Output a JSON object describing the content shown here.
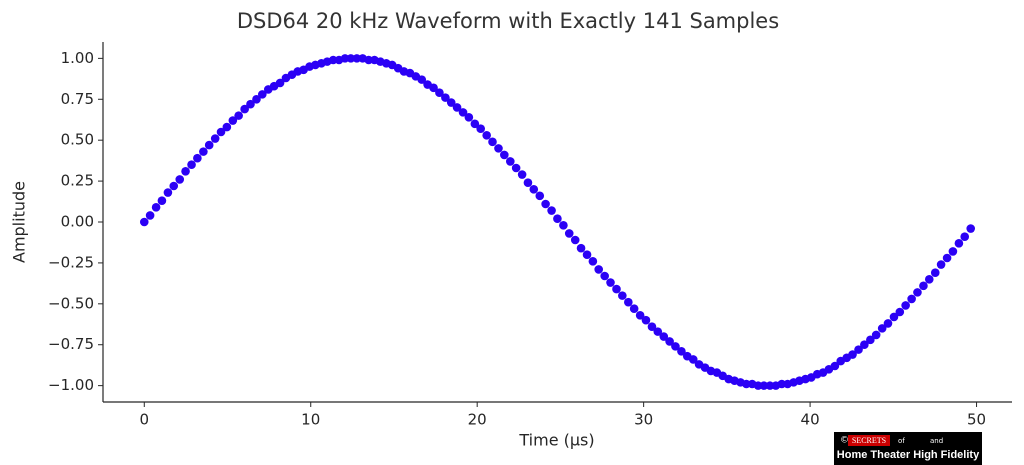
{
  "chart_data": {
    "type": "scatter",
    "title": "DSD64 20 kHz Waveform with Exactly 141 Samples",
    "x_label": "Time (µs)",
    "y_label": "Amplitude",
    "color": "#2b00f5",
    "x": [
      0,
      0.35,
      0.71,
      1.06,
      1.42,
      1.77,
      2.13,
      2.48,
      2.84,
      3.19,
      3.55,
      3.9,
      4.26,
      4.61,
      4.96,
      5.32,
      5.67,
      6.03,
      6.38,
      6.74,
      7.09,
      7.45,
      7.8,
      8.16,
      8.51,
      8.87,
      9.22,
      9.57,
      9.93,
      10.28,
      10.64,
      10.99,
      11.35,
      11.7,
      12.06,
      12.41,
      12.77,
      13.12,
      13.48,
      13.83,
      14.18,
      14.54,
      14.89,
      15.25,
      15.6,
      15.96,
      16.31,
      16.67,
      17.02,
      17.38,
      17.73,
      18.09,
      18.44,
      18.79,
      19.15,
      19.5,
      19.86,
      20.21,
      20.57,
      20.92,
      21.28,
      21.63,
      21.99,
      22.34,
      22.7,
      23.05,
      23.4,
      23.76,
      24.11,
      24.47,
      24.82,
      25.18,
      25.53,
      25.89,
      26.24,
      26.6,
      26.95,
      27.3,
      27.66,
      28.01,
      28.37,
      28.72,
      29.08,
      29.43,
      29.79,
      30.14,
      30.5,
      30.85,
      31.21,
      31.56,
      31.91,
      32.27,
      32.62,
      32.98,
      33.33,
      33.69,
      34.04,
      34.4,
      34.75,
      35.11,
      35.46,
      35.82,
      36.17,
      36.52,
      36.88,
      37.23,
      37.59,
      37.94,
      38.3,
      38.65,
      39.01,
      39.36,
      39.72,
      40.07,
      40.43,
      40.78,
      41.13,
      41.49,
      41.84,
      42.2,
      42.55,
      42.91,
      43.26,
      43.62,
      43.97,
      44.33,
      44.68,
      45.04,
      45.39,
      45.74,
      46.1,
      46.45,
      46.81,
      47.16,
      47.52,
      47.87,
      48.23,
      48.58,
      48.94,
      49.29,
      49.65
    ],
    "values": [
      0,
      0.04,
      0.09,
      0.13,
      0.18,
      0.22,
      0.26,
      0.31,
      0.35,
      0.39,
      0.43,
      0.47,
      0.51,
      0.55,
      0.58,
      0.62,
      0.65,
      0.69,
      0.72,
      0.75,
      0.78,
      0.81,
      0.83,
      0.85,
      0.88,
      0.9,
      0.92,
      0.93,
      0.95,
      0.96,
      0.97,
      0.98,
      0.99,
      0.99,
      1.0,
      1.0,
      1.0,
      1.0,
      0.99,
      0.99,
      0.98,
      0.97,
      0.96,
      0.94,
      0.92,
      0.91,
      0.89,
      0.87,
      0.84,
      0.82,
      0.79,
      0.76,
      0.73,
      0.7,
      0.67,
      0.64,
      0.6,
      0.57,
      0.53,
      0.49,
      0.45,
      0.41,
      0.37,
      0.33,
      0.29,
      0.24,
      0.2,
      0.16,
      0.11,
      0.07,
      0.02,
      -0.02,
      -0.07,
      -0.11,
      -0.16,
      -0.2,
      -0.24,
      -0.29,
      -0.33,
      -0.37,
      -0.41,
      -0.45,
      -0.49,
      -0.53,
      -0.57,
      -0.6,
      -0.64,
      -0.67,
      -0.7,
      -0.73,
      -0.76,
      -0.79,
      -0.82,
      -0.84,
      -0.87,
      -0.89,
      -0.91,
      -0.92,
      -0.94,
      -0.96,
      -0.97,
      -0.98,
      -0.99,
      -0.99,
      -1.0,
      -1.0,
      -1.0,
      -1.0,
      -0.99,
      -0.99,
      -0.98,
      -0.97,
      -0.96,
      -0.95,
      -0.93,
      -0.92,
      -0.9,
      -0.88,
      -0.85,
      -0.83,
      -0.81,
      -0.78,
      -0.75,
      -0.72,
      -0.69,
      -0.65,
      -0.62,
      -0.58,
      -0.55,
      -0.51,
      -0.47,
      -0.43,
      -0.39,
      -0.35,
      -0.31,
      -0.26,
      -0.22,
      -0.18,
      -0.13,
      -0.09,
      -0.04
    ],
    "xlim": [
      -2.48,
      52.13
    ],
    "ylim": [
      -1.1,
      1.1
    ],
    "xticks": [
      0,
      10,
      20,
      30,
      40,
      50
    ],
    "yticks": [
      {
        "value": 1,
        "label": "1.00"
      },
      {
        "value": 0.75,
        "label": "0.75"
      },
      {
        "value": 0.5,
        "label": "0.50"
      },
      {
        "value": 0.25,
        "label": "0.25"
      },
      {
        "value": 0,
        "label": "0.00"
      },
      {
        "value": -0.25,
        "label": "−0.25"
      },
      {
        "value": -0.5,
        "label": "−0.50"
      },
      {
        "value": -0.75,
        "label": "−0.75"
      },
      {
        "value": -1,
        "label": "−1.00"
      }
    ],
    "grid": false,
    "logo": {
      "mark": "©",
      "brand": "SECRETS",
      "of": "of",
      "and": "and",
      "name": "Home Theater High Fidelity"
    }
  }
}
